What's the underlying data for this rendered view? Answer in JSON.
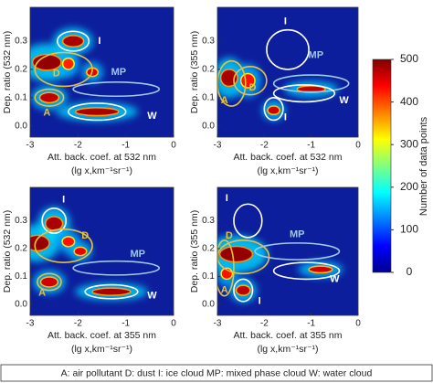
{
  "chart_data": [
    {
      "type": "heatmap",
      "xlabel": [
        "Att. back. coef. at 532 nm",
        "(lg x,km⁻¹sr⁻¹)"
      ],
      "ylabel": "Dep. ratio (532 nm)",
      "xlim": [
        -3,
        0
      ],
      "ylim": [
        -0.04,
        0.42
      ],
      "xticks": [
        -3,
        -2,
        -1,
        0
      ],
      "yticks": [
        {
          "value": 0,
          "label": "0.0"
        },
        0.1,
        0.2,
        0.3
      ],
      "background": "#0d1e9c",
      "hotspots": [
        {
          "x": -2.1,
          "y": 0.3,
          "rx": 0.22,
          "ry": 0.02,
          "value": 480
        },
        {
          "x": -2.65,
          "y": 0.225,
          "rx": 0.3,
          "ry": 0.028,
          "value": 490
        },
        {
          "x": -2.2,
          "y": 0.22,
          "rx": 0.12,
          "ry": 0.02,
          "value": 420
        },
        {
          "x": -1.7,
          "y": 0.19,
          "rx": 0.12,
          "ry": 0.015,
          "value": 450
        },
        {
          "x": -2.6,
          "y": 0.1,
          "rx": 0.2,
          "ry": 0.018,
          "value": 470
        },
        {
          "x": -1.6,
          "y": 0.05,
          "rx": 0.45,
          "ry": 0.014,
          "value": 480
        }
      ],
      "regions": [
        {
          "label": "I",
          "color": "#ffffff",
          "x": -2.1,
          "y": 0.3,
          "rx": 0.33,
          "ry": 0.035,
          "lx": -1.55,
          "ly": 0.3
        },
        {
          "label": "D",
          "color": "#e8c23a",
          "x": -2.3,
          "y": 0.2,
          "rx": 0.6,
          "ry": 0.06,
          "lx": -2.45,
          "ly": 0.185
        },
        {
          "label": "MP",
          "color": "#9ec9e8",
          "x": -1.2,
          "y": 0.13,
          "rx": 0.9,
          "ry": 0.025,
          "lx": -1.15,
          "ly": 0.19
        },
        {
          "label": "A",
          "color": "#e8c23a",
          "x": -2.6,
          "y": 0.1,
          "rx": 0.3,
          "ry": 0.03,
          "lx": -2.65,
          "ly": 0.045
        },
        {
          "label": "W",
          "color": "#ffffff",
          "x": -1.6,
          "y": 0.05,
          "rx": 0.6,
          "ry": 0.03,
          "lx": -0.45,
          "ly": 0.035
        }
      ]
    },
    {
      "type": "heatmap",
      "xlabel": [
        "Att. back. coef. at 532 nm",
        "(lg x,km⁻¹sr⁻¹)"
      ],
      "ylabel": "Dep. ratio (355 nm)",
      "xlim": [
        -3,
        0
      ],
      "ylim": [
        -0.04,
        0.42
      ],
      "xticks": [
        -3,
        -2,
        -1,
        0
      ],
      "yticks": [
        {
          "value": 0,
          "label": "0.0"
        },
        0.1,
        0.2,
        0.3
      ],
      "background": "#0d1e9c",
      "hotspots": [
        {
          "x": -2.75,
          "y": 0.17,
          "rx": 0.18,
          "ry": 0.03,
          "value": 480
        },
        {
          "x": -2.35,
          "y": 0.16,
          "rx": 0.15,
          "ry": 0.025,
          "value": 430
        },
        {
          "x": -1.0,
          "y": 0.13,
          "rx": 0.3,
          "ry": 0.012,
          "value": 470
        },
        {
          "x": -1.8,
          "y": 0.055,
          "rx": 0.13,
          "ry": 0.015,
          "value": 460
        }
      ],
      "regions": [
        {
          "label": "I",
          "color": "#ffffff",
          "x": -1.5,
          "y": 0.27,
          "rx": 0.45,
          "ry": 0.07,
          "lx": -1.55,
          "ly": 0.37
        },
        {
          "label": "MP",
          "color": "#9ec9e8",
          "x": -1.0,
          "y": 0.15,
          "rx": 0.8,
          "ry": 0.03,
          "lx": -0.9,
          "ly": 0.25
        },
        {
          "label": "D",
          "color": "#e8c23a",
          "x": -2.3,
          "y": 0.16,
          "rx": 0.35,
          "ry": 0.05,
          "lx": -2.25,
          "ly": 0.135
        },
        {
          "label": "A",
          "color": "#e8c23a",
          "x": -2.7,
          "y": 0.15,
          "rx": 0.3,
          "ry": 0.08,
          "lx": -2.85,
          "ly": 0.09
        },
        {
          "label": "W",
          "color": "#ffffff",
          "x": -1.15,
          "y": 0.115,
          "rx": 0.65,
          "ry": 0.03,
          "lx": -0.3,
          "ly": 0.09
        },
        {
          "label": "I",
          "color": "#ffffff",
          "x": -1.8,
          "y": 0.06,
          "rx": 0.2,
          "ry": 0.04,
          "lx": -1.55,
          "ly": 0.03
        }
      ]
    },
    {
      "type": "heatmap",
      "xlabel": [
        "Att. back. coef. at 355 nm",
        "(lg x,km⁻¹sr⁻¹)"
      ],
      "ylabel": "Dep. ratio (532 nm)",
      "xlim": [
        -3,
        0
      ],
      "ylim": [
        -0.04,
        0.42
      ],
      "xticks": [
        -3,
        -2,
        -1,
        0
      ],
      "yticks": [
        {
          "value": 0,
          "label": "0.0"
        },
        0.1,
        0.2,
        0.3
      ],
      "background": "#0d1e9c",
      "hotspots": [
        {
          "x": -2.5,
          "y": 0.29,
          "rx": 0.18,
          "ry": 0.025,
          "value": 480
        },
        {
          "x": -2.85,
          "y": 0.22,
          "rx": 0.25,
          "ry": 0.028,
          "value": 490
        },
        {
          "x": -2.2,
          "y": 0.225,
          "rx": 0.13,
          "ry": 0.018,
          "value": 430
        },
        {
          "x": -1.95,
          "y": 0.19,
          "rx": 0.13,
          "ry": 0.015,
          "value": 450
        },
        {
          "x": -2.6,
          "y": 0.08,
          "rx": 0.18,
          "ry": 0.018,
          "value": 460
        },
        {
          "x": -1.3,
          "y": 0.045,
          "rx": 0.4,
          "ry": 0.013,
          "value": 480
        }
      ],
      "regions": [
        {
          "label": "I",
          "color": "#ffffff",
          "x": -2.5,
          "y": 0.3,
          "rx": 0.25,
          "ry": 0.045,
          "lx": -2.3,
          "ly": 0.375
        },
        {
          "label": "D",
          "color": "#e8c23a",
          "x": -2.3,
          "y": 0.21,
          "rx": 0.6,
          "ry": 0.06,
          "lx": -1.85,
          "ly": 0.245
        },
        {
          "label": "MP",
          "color": "#9ec9e8",
          "x": -1.2,
          "y": 0.13,
          "rx": 0.9,
          "ry": 0.025,
          "lx": -0.75,
          "ly": 0.18
        },
        {
          "label": "A",
          "color": "#e8c23a",
          "x": -2.6,
          "y": 0.08,
          "rx": 0.25,
          "ry": 0.03,
          "lx": -2.75,
          "ly": 0.04
        },
        {
          "label": "W",
          "color": "#ffffff",
          "x": -1.3,
          "y": 0.045,
          "rx": 0.55,
          "ry": 0.025,
          "lx": -0.45,
          "ly": 0.03
        }
      ]
    },
    {
      "type": "heatmap",
      "xlabel": [
        "Att. back. coef. at 355 nm",
        "(lg x,km⁻¹sr⁻¹)"
      ],
      "ylabel": "Dep. ratio (355 nm)",
      "xlim": [
        -3,
        0
      ],
      "ylim": [
        -0.04,
        0.42
      ],
      "xticks": [
        -3,
        -2,
        -1,
        0
      ],
      "yticks": [
        {
          "value": 0,
          "label": "0.0"
        },
        0.1,
        0.2,
        0.3
      ],
      "background": "#0d1e9c",
      "hotspots": [
        {
          "x": -2.6,
          "y": 0.18,
          "rx": 0.35,
          "ry": 0.028,
          "value": 490
        },
        {
          "x": -2.8,
          "y": 0.11,
          "rx": 0.12,
          "ry": 0.02,
          "value": 430
        },
        {
          "x": -0.8,
          "y": 0.125,
          "rx": 0.25,
          "ry": 0.012,
          "value": 460
        },
        {
          "x": -2.45,
          "y": 0.05,
          "rx": 0.15,
          "ry": 0.018,
          "value": 470
        }
      ],
      "regions": [
        {
          "label": "I",
          "color": "#ffffff",
          "x": -2.35,
          "y": 0.3,
          "rx": 0.3,
          "ry": 0.06,
          "lx": -2.8,
          "ly": 0.38
        },
        {
          "label": "D",
          "color": "#e8c23a",
          "x": -2.45,
          "y": 0.17,
          "rx": 0.55,
          "ry": 0.06,
          "lx": -2.75,
          "ly": 0.245
        },
        {
          "label": "MP",
          "color": "#9ec9e8",
          "x": -1.3,
          "y": 0.19,
          "rx": 0.9,
          "ry": 0.03,
          "lx": -1.3,
          "ly": 0.25
        },
        {
          "label": "A",
          "color": "#e8c23a",
          "x": -2.85,
          "y": 0.13,
          "rx": 0.2,
          "ry": 0.1,
          "lx": -2.85,
          "ly": 0.05
        },
        {
          "label": "W",
          "color": "#ffffff",
          "x": -1.1,
          "y": 0.12,
          "rx": 0.7,
          "ry": 0.03,
          "lx": -0.5,
          "ly": 0.09
        },
        {
          "label": "I",
          "color": "#ffffff",
          "x": -2.45,
          "y": 0.05,
          "rx": 0.2,
          "ry": 0.04,
          "lx": -2.1,
          "ly": 0.01
        }
      ]
    }
  ],
  "colorbar": {
    "label": "Number of data points",
    "lim": [
      0,
      500
    ],
    "ticks": [
      0,
      100,
      200,
      300,
      400,
      500
    ],
    "colormap": [
      "#00008f",
      "#0000ff",
      "#0080ff",
      "#00ffff",
      "#80ff80",
      "#ffff00",
      "#ff8000",
      "#ff0000",
      "#800000"
    ]
  },
  "caption": "A: air pollutant   D: dust   I: ice cloud   MP: mixed phase cloud W: water cloud"
}
